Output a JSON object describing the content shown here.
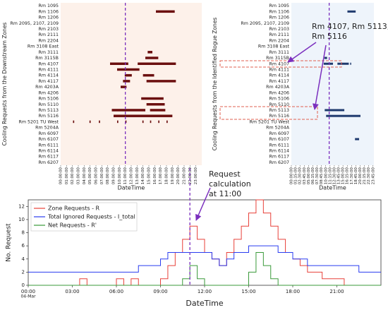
{
  "chart_data": [
    {
      "type": "gantt",
      "ylabel": "Cooling Requests from the Downstream Zones",
      "xlabel": "DateTime",
      "categories": [
        "Rm 1095",
        "Rm 1106",
        "Rm 1206",
        "Rm 2095, 2107, 2109",
        "Rm 2103",
        "Rm 2111",
        "Rm 2204",
        "Rm 3108 East",
        "Rm 3111",
        "Rm 3115B",
        "Rm 4107",
        "Rm 4111",
        "Rm 4114",
        "Rm 4117",
        "Rm 4203A",
        "Rm 4206",
        "Rm 5106",
        "Rm 5110",
        "Rm 5113",
        "Rm 5116",
        "Rm 5201 TU West",
        "Rm 5204A",
        "Rm 6097",
        "Rm 6107",
        "Rm 6111",
        "Rm 6114",
        "Rm 6117",
        "Rm 6207"
      ],
      "color": "#6b0f0f",
      "background": "#fdf1ea",
      "marker_x": 11,
      "marker_color": "#7b2fbe",
      "xlim": [
        0,
        24
      ],
      "xticks": [
        {
          "value": 0,
          "label": "00:00:00"
        },
        {
          "value": 1,
          "label": "01:00:00"
        },
        {
          "value": 2,
          "label": "02:00:00"
        },
        {
          "value": 3,
          "label": "03:00:00"
        },
        {
          "value": 4,
          "label": "04:00:00"
        },
        {
          "value": 5,
          "label": "05:00:00"
        },
        {
          "value": 6,
          "label": "06:00:00"
        },
        {
          "value": 7,
          "label": "07:00:00"
        },
        {
          "value": 8,
          "label": "08:00:00"
        },
        {
          "value": 9,
          "label": "09:00:00"
        },
        {
          "value": 10,
          "label": "10:00:00"
        },
        {
          "value": 11,
          "label": "11:00:00"
        },
        {
          "value": 12,
          "label": "12:00:00"
        },
        {
          "value": 13,
          "label": "13:00:00"
        },
        {
          "value": 14,
          "label": "14:00:00"
        },
        {
          "value": 15,
          "label": "15:00:00"
        },
        {
          "value": 16,
          "label": "16:00:00"
        },
        {
          "value": 17,
          "label": "17:00:00"
        },
        {
          "value": 18,
          "label": "18:00:00"
        },
        {
          "value": 19,
          "label": "19:00:00"
        },
        {
          "value": 20,
          "label": "20:00:00"
        },
        {
          "value": 21,
          "label": "21:00:00"
        },
        {
          "value": 22,
          "label": "22:00:00"
        },
        {
          "value": 23,
          "label": "23:00:00"
        }
      ],
      "bars": [
        {
          "category": "Rm 1106",
          "start": 16.2,
          "end": 19.4
        },
        {
          "category": "Rm 3111",
          "start": 14.8,
          "end": 15.6
        },
        {
          "category": "Rm 3115B",
          "start": 14.4,
          "end": 16.6
        },
        {
          "category": "Rm 4107",
          "start": 8.4,
          "end": 11.5
        },
        {
          "category": "Rm 4107",
          "start": 13.1,
          "end": 19.6
        },
        {
          "category": "Rm 4111",
          "start": 9.6,
          "end": 13.4
        },
        {
          "category": "Rm 4114",
          "start": 10.9,
          "end": 12.1
        },
        {
          "category": "Rm 4114",
          "start": 14.0,
          "end": 15.9
        },
        {
          "category": "Rm 4117",
          "start": 10.6,
          "end": 11.8
        },
        {
          "category": "Rm 4117",
          "start": 14.6,
          "end": 19.6
        },
        {
          "category": "Rm 4203A",
          "start": 10.2,
          "end": 11.2
        },
        {
          "category": "Rm 5106",
          "start": 13.7,
          "end": 17.5
        },
        {
          "category": "Rm 5110",
          "start": 14.6,
          "end": 17.7
        },
        {
          "category": "Rm 5113",
          "start": 8.7,
          "end": 14.4
        },
        {
          "category": "Rm 5113",
          "start": 15.2,
          "end": 17.8
        },
        {
          "category": "Rm 5116",
          "start": 9.0,
          "end": 19.0
        },
        {
          "category": "Rm 5201 TU West",
          "start": 2.1,
          "end": 2.3
        },
        {
          "category": "Rm 5201 TU West",
          "start": 4.9,
          "end": 5.1
        },
        {
          "category": "Rm 5201 TU West",
          "start": 6.5,
          "end": 6.7
        },
        {
          "category": "Rm 5201 TU West",
          "start": 9.6,
          "end": 9.8
        },
        {
          "category": "Rm 5201 TU West",
          "start": 11.0,
          "end": 11.2
        },
        {
          "category": "Rm 5201 TU West",
          "start": 13.9,
          "end": 14.1
        },
        {
          "category": "Rm 5201 TU West",
          "start": 15.2,
          "end": 15.4
        },
        {
          "category": "Rm 5201 TU West",
          "start": 16.6,
          "end": 16.8
        },
        {
          "category": "Rm 5201 TU West",
          "start": 18.0,
          "end": 18.2
        }
      ]
    },
    {
      "type": "gantt",
      "ylabel": "Cooling Requests from the Identified Rogue Zones",
      "xlabel": "DateTime",
      "categories": [
        "Rm 1095",
        "Rm 1106",
        "Rm 1206",
        "Rm 2095, 2107, 2109",
        "Rm 2103",
        "Rm 2111",
        "Rm 2204",
        "Rm 3108 East",
        "Rm 3111",
        "Rm 3115B",
        "Rm 4107",
        "Rm 4111",
        "Rm 4114",
        "Rm 4117",
        "Rm 4203A",
        "Rm 4206",
        "Rm 5106",
        "Rm 5110",
        "Rm 5113",
        "Rm 5116",
        "Rm 5201 TU West",
        "Rm 5204A",
        "Rm 6097",
        "Rm 6107",
        "Rm 6111",
        "Rm 6114",
        "Rm 6117",
        "Rm 6207"
      ],
      "color": "#1f3a6e",
      "background": "#eef4fb",
      "marker_x": 11,
      "marker_color": "#7b2fbe",
      "annotation_lines": [
        "Rm 4107, Rm 5113,",
        "Rm 5116"
      ],
      "xlim": [
        0,
        24
      ],
      "xticks": [
        {
          "value": 0,
          "label": "00:00:00"
        },
        {
          "value": 1.25,
          "label": "01:15:00"
        },
        {
          "value": 2.5,
          "label": "02:30:00"
        },
        {
          "value": 3.75,
          "label": "03:45:00"
        },
        {
          "value": 5,
          "label": "05:00:00"
        },
        {
          "value": 6.25,
          "label": "06:15:00"
        },
        {
          "value": 7.5,
          "label": "07:30:00"
        },
        {
          "value": 8.75,
          "label": "08:45:00"
        },
        {
          "value": 10,
          "label": "10:00:00"
        },
        {
          "value": 11.25,
          "label": "11:15:00"
        },
        {
          "value": 12.5,
          "label": "12:30:00"
        },
        {
          "value": 13.75,
          "label": "13:45:00"
        },
        {
          "value": 15,
          "label": "15:00:00"
        },
        {
          "value": 16.25,
          "label": "16:15:00"
        },
        {
          "value": 17.5,
          "label": "17:30:00"
        },
        {
          "value": 18.75,
          "label": "18:45:00"
        },
        {
          "value": 20,
          "label": "20:00:00"
        },
        {
          "value": 21.25,
          "label": "21:15:00"
        },
        {
          "value": 22.5,
          "label": "22:30:00"
        },
        {
          "value": 23.75,
          "label": "23:45:00"
        }
      ],
      "bars": [
        {
          "category": "Rm 1106",
          "start": 16.3,
          "end": 18.7
        },
        {
          "category": "Rm 3115B",
          "start": 9.6,
          "end": 10.4
        },
        {
          "category": "Rm 4107",
          "start": 9.4,
          "end": 12.1
        },
        {
          "category": "Rm 4107",
          "start": 13.4,
          "end": 16.7
        },
        {
          "category": "Rm 4107",
          "start": 17.1,
          "end": 17.4
        },
        {
          "category": "Rm 5113",
          "start": 9.7,
          "end": 15.4
        },
        {
          "category": "Rm 5116",
          "start": 10.1,
          "end": 20.1
        },
        {
          "category": "Rm 6107",
          "start": 18.5,
          "end": 19.7
        }
      ]
    },
    {
      "type": "line",
      "ylabel": "No. Request",
      "xlabel": "DateTime",
      "annotation_lines": [
        "Request",
        "calculation",
        "at 11:00"
      ],
      "marker_x": 11,
      "marker_color": "#7b2fbe",
      "legend": "upper left",
      "xlim": [
        0,
        24
      ],
      "ylim": [
        0,
        13
      ],
      "xticks": [
        {
          "value": 0,
          "label": "00:00"
        },
        {
          "value": 3,
          "label": "03:00"
        },
        {
          "value": 6,
          "label": "06:00"
        },
        {
          "value": 9,
          "label": "09:00"
        },
        {
          "value": 12,
          "label": "12:00"
        },
        {
          "value": 15,
          "label": "15:00"
        },
        {
          "value": 18,
          "label": "18:00"
        },
        {
          "value": 21,
          "label": "21:00"
        }
      ],
      "x_date": "04-Mar",
      "yticks": [
        0,
        2,
        4,
        6,
        8,
        10,
        12
      ],
      "x": [
        0,
        0.5,
        1,
        1.5,
        2,
        2.5,
        3,
        3.5,
        4,
        4.5,
        5,
        5.5,
        6,
        6.5,
        7,
        7.5,
        8,
        8.5,
        9,
        9.5,
        10,
        10.5,
        11,
        11.5,
        12,
        12.5,
        13,
        13.5,
        14,
        14.5,
        15,
        15.5,
        16,
        16.5,
        17,
        17.5,
        18,
        18.5,
        19,
        19.5,
        20,
        20.5,
        21,
        21.5,
        22,
        22.5,
        23,
        23.5,
        24
      ],
      "series": [
        {
          "name": "Zone Requests - R",
          "color": "#e8413a",
          "values": [
            0,
            0,
            0,
            0,
            0,
            0,
            0,
            1,
            0,
            0,
            0,
            0,
            1,
            0,
            1,
            0,
            0,
            0,
            1,
            3,
            5,
            7,
            9,
            7,
            5,
            4,
            3,
            5,
            7,
            9,
            11,
            13,
            11,
            9,
            7,
            5,
            4,
            3,
            2,
            2,
            1,
            1,
            1,
            0,
            0,
            0,
            0,
            0,
            0
          ]
        },
        {
          "name": "Total Ignored Requests - I_total",
          "color": "#2a3cf0",
          "values": [
            2,
            2,
            2,
            2,
            2,
            2,
            2,
            2,
            2,
            2,
            2,
            2,
            2,
            2,
            2,
            3,
            3,
            3,
            4,
            5,
            5,
            5,
            5,
            5,
            5,
            4,
            3,
            4,
            5,
            5,
            6,
            6,
            6,
            6,
            5,
            5,
            4,
            4,
            3,
            3,
            3,
            3,
            3,
            3,
            3,
            2,
            2,
            2,
            2
          ]
        },
        {
          "name": "Net Requests - R'",
          "color": "#3a9a3a",
          "values": [
            0,
            0,
            0,
            0,
            0,
            0,
            0,
            0,
            0,
            0,
            0,
            0,
            0,
            0,
            0,
            0,
            0,
            0,
            0,
            0,
            0,
            1,
            3,
            1,
            0,
            0,
            0,
            0,
            0,
            0,
            2,
            5,
            3,
            1,
            0,
            0,
            0,
            0,
            0,
            0,
            0,
            0,
            0,
            0,
            0,
            0,
            0,
            0,
            0
          ]
        }
      ]
    }
  ]
}
